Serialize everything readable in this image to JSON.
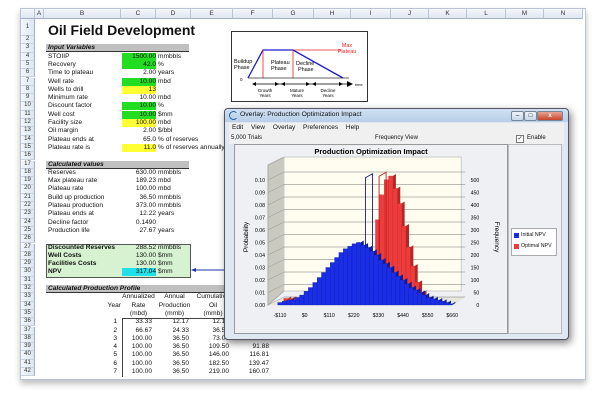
{
  "sheet": {
    "columns": [
      "A",
      "B",
      "C",
      "D",
      "E",
      "F",
      "G",
      "H",
      "I",
      "J",
      "K",
      "L",
      "M",
      "N"
    ],
    "title": "Oil Field Development",
    "sections": {
      "inputs": "Input Variables",
      "calculated": "Calculated values",
      "profile": "Calculated Production Profile"
    },
    "inputs": [
      {
        "row": 4,
        "label": "STOIIP",
        "value": "1500.00",
        "unit": "mmbbls",
        "fill": "#22dd22"
      },
      {
        "row": 5,
        "label": "Recovery",
        "value": "42.0",
        "unit": "%",
        "fill": "#22dd22"
      },
      {
        "row": 6,
        "label": "Time to plateau",
        "value": "2.00",
        "unit": "years",
        "fill": ""
      },
      {
        "row": 7,
        "label": "Well rate",
        "value": "10.00",
        "unit": "mbd",
        "fill": "#22dd22"
      },
      {
        "row": 8,
        "label": "Wells to drill",
        "value": "13",
        "unit": "",
        "fill": "#ffff33"
      },
      {
        "row": 9,
        "label": "Minimum rate",
        "value": "10.00",
        "unit": "mbd",
        "fill": ""
      },
      {
        "row": 10,
        "label": "Discount factor",
        "value": "10.00",
        "unit": "%",
        "fill": "#22dd22"
      },
      {
        "row": 11,
        "label": "Well cost",
        "value": "10.00",
        "unit": "$mm",
        "fill": "#22dd22"
      },
      {
        "row": 12,
        "label": "Facility size",
        "value": "100.00",
        "unit": "mbd",
        "fill": "#ffff33"
      },
      {
        "row": 13,
        "label": "Oil margin",
        "value": "2.00",
        "unit": "$/bbl",
        "fill": ""
      },
      {
        "row": 14,
        "label": "Plateau ends at",
        "value": "65.0",
        "unit": "% of reserves",
        "fill": ""
      },
      {
        "row": 15,
        "label": "Plateau rate is",
        "value": "11.0",
        "unit": "% of reserves annually",
        "fill": "#ffff33"
      }
    ],
    "calculated": [
      {
        "row": 18,
        "label": "Reserves",
        "value": "630.00",
        "unit": "mmbbls"
      },
      {
        "row": 19,
        "label": "Max plateau rate",
        "value": "189.23",
        "unit": "mbd"
      },
      {
        "row": 20,
        "label": "Plateau rate",
        "value": "100.00",
        "unit": "mbd"
      },
      {
        "row": 21,
        "label": "Build up production",
        "value": "36.50",
        "unit": "mmbbls"
      },
      {
        "row": 22,
        "label": "Plateau production",
        "value": "373.00",
        "unit": "mmbbls"
      },
      {
        "row": 23,
        "label": "Plateau ends at",
        "value": "12.22",
        "unit": "years"
      },
      {
        "row": 24,
        "label": "Decline factor",
        "value": "0.1490",
        "unit": ""
      },
      {
        "row": 25,
        "label": "Production life",
        "value": "27.67",
        "unit": "years"
      }
    ],
    "summary": [
      {
        "row": 27,
        "label": "Discounted Reserves",
        "value": "288.52",
        "unit": "mmbbls",
        "fill": ""
      },
      {
        "row": 28,
        "label": "Well Costs",
        "value": "130.00",
        "unit": "$mm",
        "fill": ""
      },
      {
        "row": 29,
        "label": "Facilities Costs",
        "value": "130.00",
        "unit": "$mm",
        "fill": ""
      },
      {
        "row": 30,
        "label": "NPV",
        "value": "317.04",
        "unit": "$mm",
        "fill": "#22e0e8"
      }
    ],
    "profile_headers": [
      [
        "",
        "Annualized",
        "Annual",
        "Cumulative"
      ],
      [
        "Year",
        "Rate",
        "Production",
        "Oil"
      ],
      [
        "",
        "(mbd)",
        "(mmb)",
        "(mmb)"
      ]
    ],
    "profile_rows": [
      [
        "1",
        "33.33",
        "12.17",
        "12.17",
        ""
      ],
      [
        "2",
        "66.67",
        "24.33",
        "36.50",
        ""
      ],
      [
        "3",
        "100.00",
        "36.50",
        "73.00",
        ""
      ],
      [
        "4",
        "100.00",
        "36.50",
        "109.50",
        "91.88"
      ],
      [
        "5",
        "100.00",
        "36.50",
        "146.00",
        "116.81"
      ],
      [
        "6",
        "100.00",
        "36.50",
        "182.50",
        "139.47"
      ],
      [
        "7",
        "100.00",
        "36.50",
        "219.00",
        "160.07"
      ]
    ]
  },
  "diagram": {
    "max_plateau": [
      "Max",
      "Plateau"
    ],
    "phases": [
      [
        "Buildup",
        "Phase"
      ],
      [
        "Plateau",
        "Phase"
      ],
      [
        "Decline",
        "Phase"
      ]
    ],
    "origin": "0",
    "time_label": "time",
    "years": [
      [
        "Growth",
        "Years"
      ],
      [
        "Mature",
        "Years"
      ],
      [
        "Decline",
        "Years"
      ]
    ]
  },
  "window": {
    "title": "Overlay: Production Optimization Impact",
    "menu": [
      "Edit",
      "View",
      "Overlay",
      "Preferences",
      "Help"
    ],
    "trials": "5,000 Trials",
    "view": "Frequency View",
    "rotation_label": "Enable Rotation",
    "rotation_checked": true
  },
  "chart_data": {
    "type": "bar",
    "title": "Production Optimization Impact",
    "ylabel": "Probability",
    "y2label": "Frequency",
    "ylim": [
      0,
      0.1
    ],
    "y2lim": [
      0,
      500
    ],
    "yticks": [
      "0.00",
      "0.01",
      "0.02",
      "0.03",
      "0.04",
      "0.05",
      "0.06",
      "0.07",
      "0.08",
      "0.09",
      "0.10"
    ],
    "y2ticks": [
      "0",
      "50",
      "100",
      "150",
      "200",
      "250",
      "300",
      "350",
      "400",
      "450",
      "500"
    ],
    "xticks": [
      "-$110",
      "$0",
      "$110",
      "$220",
      "$330",
      "$440",
      "$550",
      "$660"
    ],
    "xtick_values": [
      -110,
      0,
      110,
      220,
      330,
      440,
      550,
      660
    ],
    "grid": true,
    "legend_position": "right",
    "x": [
      -110,
      -90,
      -70,
      -50,
      -30,
      -10,
      10,
      30,
      50,
      70,
      90,
      110,
      130,
      150,
      170,
      190,
      210,
      230,
      250,
      270,
      290,
      310,
      330,
      350,
      370,
      390,
      410,
      430,
      450,
      470,
      490,
      510,
      530,
      550,
      570,
      590,
      610,
      630,
      650,
      670
    ],
    "series": [
      {
        "name": "Initial NPV",
        "color": "#1a2ee8",
        "values": [
          0.002,
          0.003,
          0.004,
          0.004,
          0.006,
          0.008,
          0.011,
          0.014,
          0.018,
          0.022,
          0.026,
          0.03,
          0.034,
          0.038,
          0.042,
          0.045,
          0.047,
          0.049,
          0.05,
          0.048,
          0.046,
          0.043,
          0.04,
          0.036,
          0.033,
          0.03,
          0.026,
          0.023,
          0.02,
          0.017,
          0.014,
          0.012,
          0.01,
          0.008,
          0.006,
          0.005,
          0.004,
          0.003,
          0.002,
          0.001
        ]
      },
      {
        "name": "Optimal NPV",
        "color": "#ee3b3b",
        "values": [
          0.002,
          0.002,
          0.001,
          0.001,
          0,
          0,
          0,
          0,
          0,
          0,
          0,
          0,
          0,
          0,
          0,
          0,
          0,
          0,
          0.005,
          0.015,
          0.035,
          0.065,
          0.085,
          0.097,
          0.1,
          0.09,
          0.078,
          0.06,
          0.043,
          0.028,
          0.015,
          0.007,
          0.002,
          0,
          0,
          0,
          0,
          0,
          0,
          0
        ]
      }
    ],
    "markers": [
      {
        "series": "Initial NPV",
        "x": 300,
        "y": 0.105
      },
      {
        "series": "Optimal NPV",
        "x": 335,
        "y": 0.103
      }
    ]
  }
}
